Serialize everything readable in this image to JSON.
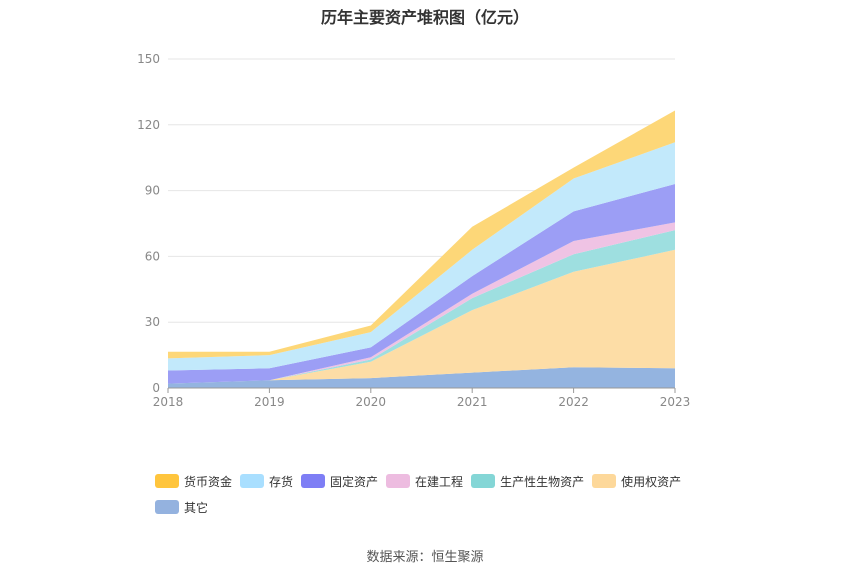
{
  "chart_title": "历年主要资产堆积图（亿元）",
  "source_text": "数据来源：恒生聚源",
  "chart_data": {
    "type": "area",
    "stacked": true,
    "title": "历年主要资产堆积图（亿元）",
    "xlabel": "",
    "ylabel": "",
    "ylim": [
      0,
      150
    ],
    "yticks": [
      0,
      30,
      60,
      90,
      120,
      150
    ],
    "grid": true,
    "legend_position": "bottom",
    "categories": [
      "2018",
      "2019",
      "2020",
      "2021",
      "2022",
      "2023"
    ],
    "series": [
      {
        "name": "其它",
        "color": "#94B4E0",
        "values": [
          2.0,
          3.5,
          4.5,
          7.0,
          9.5,
          9.0
        ]
      },
      {
        "name": "使用权资产",
        "color": "#FDDDA6",
        "values": [
          0.0,
          0.0,
          7.5,
          28.5,
          43.5,
          54.0
        ]
      },
      {
        "name": "生产性生物资产",
        "color": "#9EDFE0",
        "values": [
          0.0,
          0.0,
          1.0,
          5.5,
          8.0,
          9.0
        ]
      },
      {
        "name": "在建工程",
        "color": "#EFC3E4",
        "values": [
          0.0,
          0.0,
          1.0,
          2.0,
          6.0,
          3.5
        ]
      },
      {
        "name": "固定资产",
        "color": "#9C9EF5",
        "values": [
          6.0,
          5.5,
          4.5,
          8.0,
          13.5,
          17.5
        ]
      },
      {
        "name": "存货",
        "color": "#C2E9FB",
        "values": [
          5.5,
          6.0,
          7.0,
          12.0,
          15.0,
          19.0
        ]
      },
      {
        "name": "货币资金",
        "color": "#FDD778",
        "values": [
          3.0,
          1.5,
          3.0,
          10.5,
          5.0,
          14.5
        ]
      }
    ],
    "legend_order": [
      "货币资金",
      "存货",
      "固定资产",
      "在建工程",
      "生产性生物资产",
      "使用权资产",
      "其它"
    ],
    "legend_colors": {
      "货币资金": "#FFC53D",
      "存货": "#A9DFFF",
      "固定资产": "#7E7EF5",
      "在建工程": "#EDBCE0",
      "生产性生物资产": "#84D6D6",
      "使用权资产": "#FDD89A",
      "其它": "#94B2DF"
    }
  }
}
